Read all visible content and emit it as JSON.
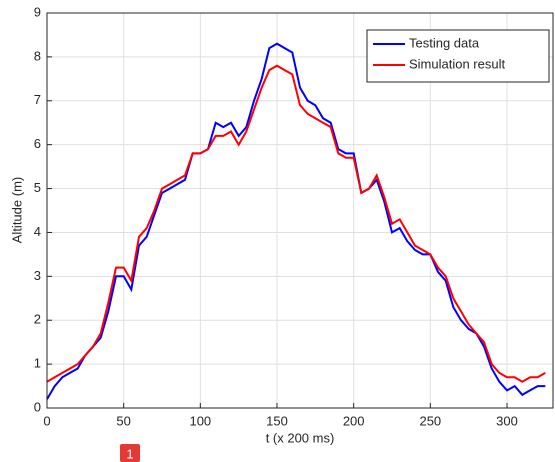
{
  "chart_data": {
    "type": "line",
    "x_label": "t (x 200 ms)",
    "y_label": "Altitude (m)",
    "annotation": "1",
    "x": [
      0,
      5,
      10,
      15,
      20,
      25,
      30,
      35,
      40,
      45,
      50,
      55,
      60,
      65,
      70,
      75,
      80,
      85,
      90,
      95,
      100,
      105,
      110,
      115,
      120,
      125,
      130,
      135,
      140,
      145,
      150,
      155,
      160,
      165,
      170,
      175,
      180,
      185,
      190,
      195,
      200,
      205,
      210,
      215,
      220,
      225,
      230,
      235,
      240,
      245,
      250,
      255,
      260,
      265,
      270,
      275,
      280,
      285,
      290,
      295,
      300,
      305,
      310,
      315,
      320,
      325
    ],
    "series": [
      {
        "name": "Testing data",
        "color": "#0000ff",
        "values": [
          0.2,
          0.5,
          0.7,
          0.8,
          0.9,
          1.2,
          1.4,
          1.6,
          2.2,
          3.0,
          3.0,
          2.7,
          3.7,
          3.9,
          4.4,
          4.9,
          5.0,
          5.1,
          5.2,
          5.8,
          5.8,
          5.9,
          6.5,
          6.4,
          6.5,
          6.2,
          6.4,
          7.0,
          7.5,
          8.2,
          8.3,
          8.2,
          8.1,
          7.3,
          7.0,
          6.9,
          6.6,
          6.5,
          5.9,
          5.8,
          5.8,
          4.9,
          5.0,
          5.2,
          4.7,
          4.0,
          4.1,
          3.8,
          3.6,
          3.5,
          3.5,
          3.1,
          2.9,
          2.3,
          2.0,
          1.8,
          1.7,
          1.4,
          0.9,
          0.6,
          0.4,
          0.5,
          0.3,
          0.4,
          0.5,
          0.5
        ]
      },
      {
        "name": "Simulation result",
        "color": "#ff0000",
        "values": [
          0.6,
          0.7,
          0.8,
          0.9,
          1.0,
          1.2,
          1.4,
          1.7,
          2.4,
          3.2,
          3.2,
          2.9,
          3.9,
          4.1,
          4.5,
          5.0,
          5.1,
          5.2,
          5.3,
          5.8,
          5.8,
          5.9,
          6.2,
          6.2,
          6.3,
          6.0,
          6.3,
          6.8,
          7.3,
          7.7,
          7.8,
          7.7,
          7.6,
          6.9,
          6.7,
          6.6,
          6.5,
          6.4,
          5.8,
          5.7,
          5.7,
          4.9,
          5.0,
          5.3,
          4.8,
          4.2,
          4.3,
          4.0,
          3.7,
          3.6,
          3.5,
          3.2,
          3.0,
          2.5,
          2.2,
          1.9,
          1.7,
          1.5,
          1.0,
          0.8,
          0.7,
          0.7,
          0.6,
          0.7,
          0.7,
          0.8
        ]
      }
    ],
    "xlim": [
      0,
      330
    ],
    "ylim": [
      0,
      9
    ],
    "xticks": [
      0,
      50,
      100,
      150,
      200,
      250,
      300
    ],
    "yticks": [
      0,
      1,
      2,
      3,
      4,
      5,
      6,
      7,
      8,
      9
    ],
    "grid": true,
    "legend": "top-right"
  }
}
